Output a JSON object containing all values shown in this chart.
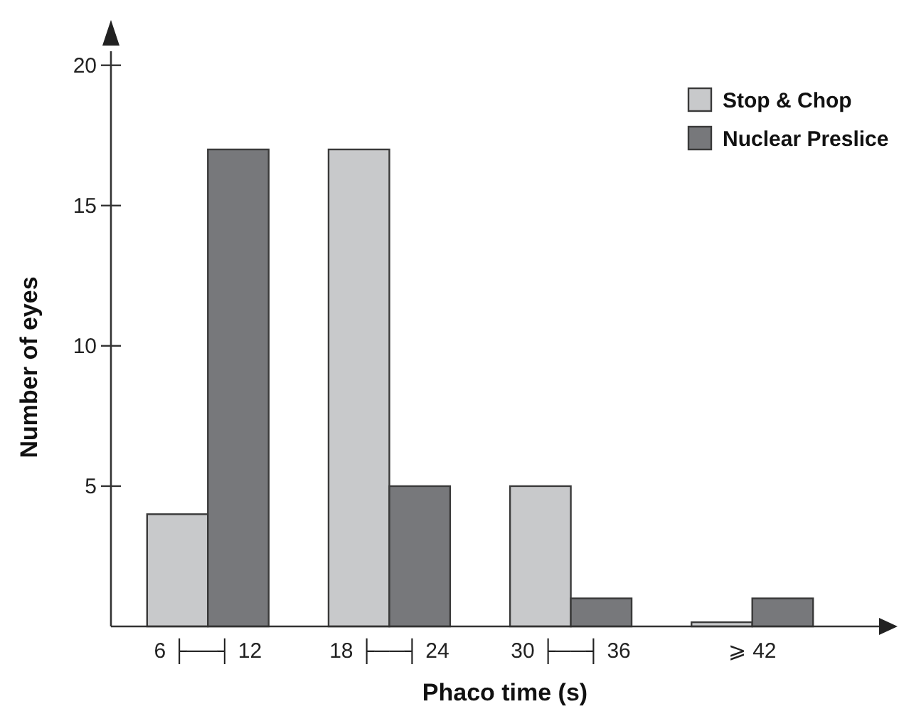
{
  "chart_data": {
    "type": "bar",
    "xlabel": "Phaco time (s)",
    "ylabel": "Number of eyes",
    "categories": [
      "6 ├──┤ 12",
      "18 ├──┤ 24",
      "30 ├──┤ 36",
      "⩾ 42"
    ],
    "series": [
      {
        "name": "Stop & Chop",
        "color": "#c8c9cb",
        "values": [
          4,
          17,
          5,
          0.15
        ]
      },
      {
        "name": "Nuclear Preslice",
        "color": "#77787b",
        "values": [
          17,
          5,
          1,
          1
        ]
      }
    ],
    "ylim": [
      0,
      20.5
    ],
    "yticks": [
      5,
      10,
      15,
      20
    ],
    "grid": false,
    "legend": "top right"
  }
}
